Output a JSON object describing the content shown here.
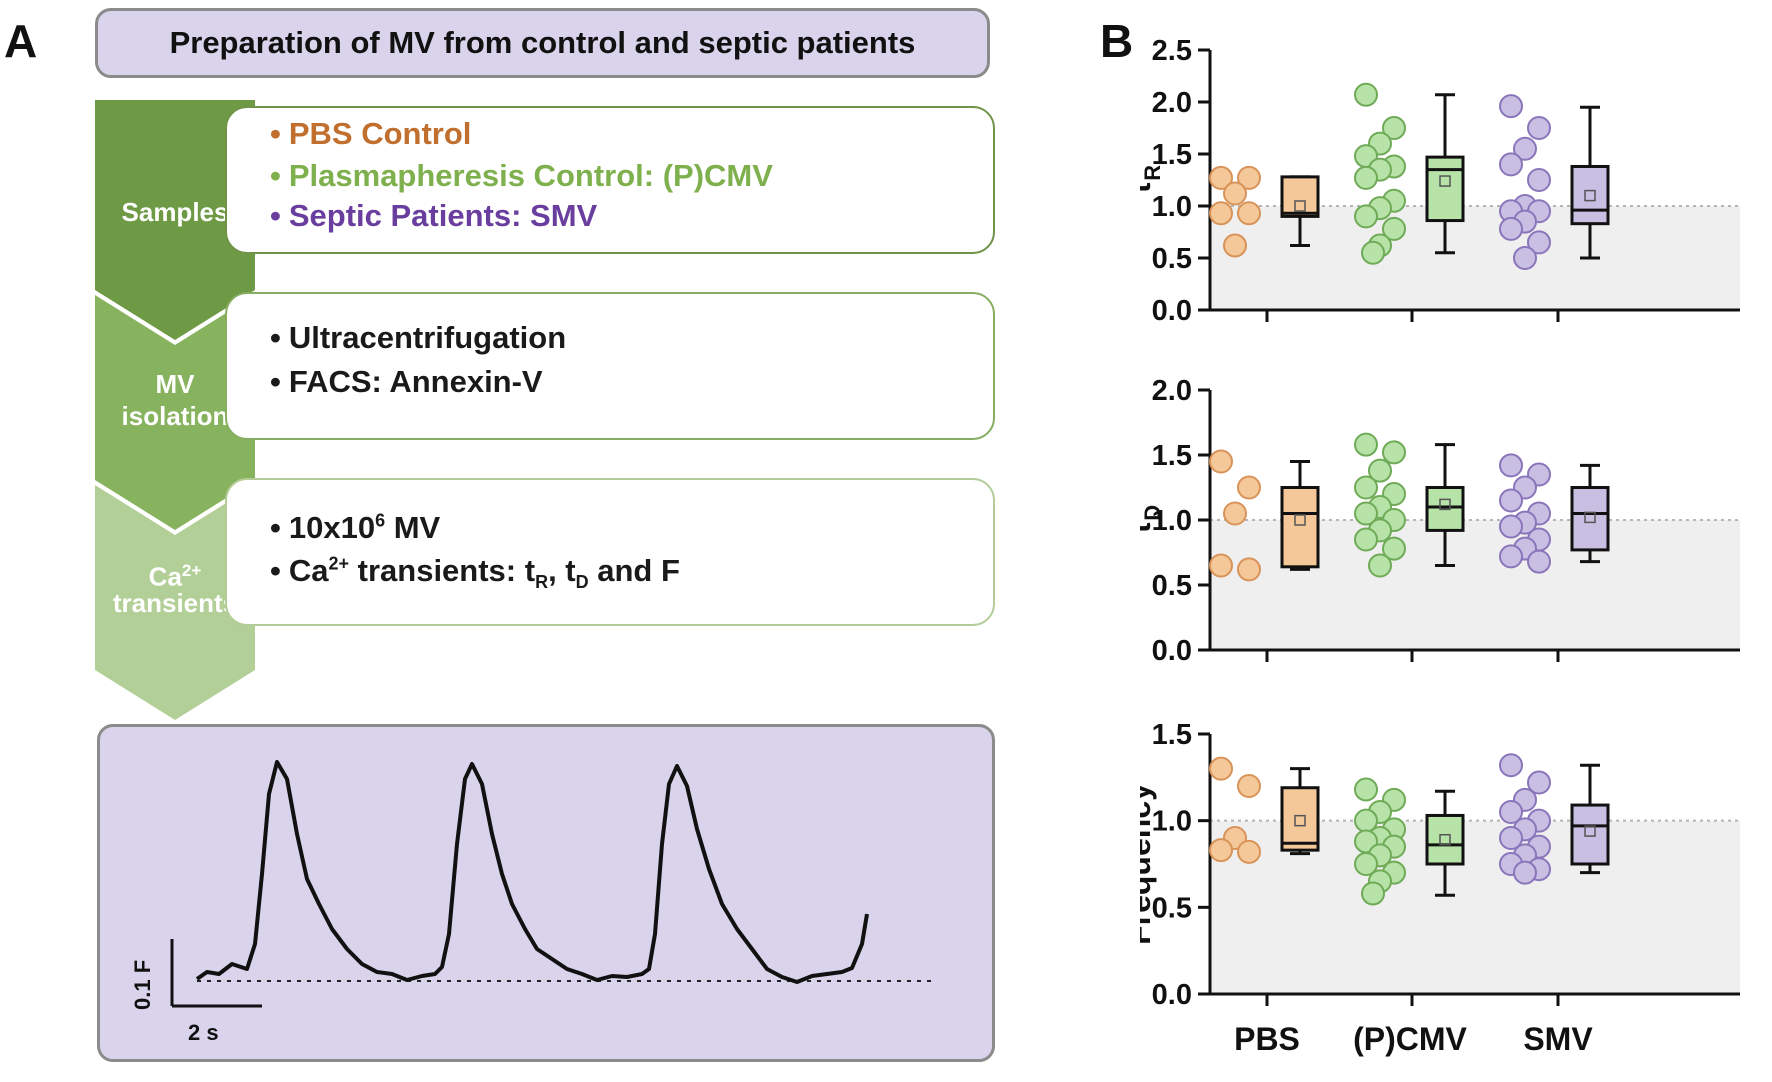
{
  "panelA": {
    "letter": "A",
    "title": "Preparation of MV from control and septic patients",
    "steps": [
      {
        "chevron": [
          "Samples"
        ],
        "lines": [
          {
            "bullet": "•",
            "text": "PBS Control",
            "color": "#c06f2e"
          },
          {
            "bullet": "•",
            "text": "Plasmapheresis Control: (P)CMV",
            "color": "#7fb04e"
          },
          {
            "bullet": "•",
            "text": "Septic Patients: SMV",
            "color": "#6a3e9e"
          }
        ]
      },
      {
        "chevron": [
          "MV",
          "isolation"
        ],
        "lines": [
          {
            "bullet": "•",
            "text": "Ultracentrifugation",
            "color": "#1a1a1a"
          },
          {
            "bullet": "•",
            "text": "FACS: Annexin-V",
            "color": "#1a1a1a"
          }
        ]
      },
      {
        "chevron_base": "Ca",
        "chevron_sup": "2+",
        "chevron_line2": "transients",
        "line1": {
          "bullet": "•",
          "base": "10x10",
          "sup": "6",
          "tail": " MV"
        },
        "line2": {
          "bullet": "•",
          "base": "Ca",
          "sup": "2+",
          "mid": " transients: t",
          "sub1": "R",
          "comma": ", t",
          "sub2": "D",
          "tail": "  and F"
        }
      }
    ],
    "trace": {
      "scale_y": "0.1 F",
      "scale_x": "2 s"
    }
  },
  "panelB": {
    "letter": "B",
    "x_categories": [
      "PBS",
      "(P)CMV",
      "SMV"
    ]
  },
  "colors": {
    "pbs_fill": "#f5c89a",
    "pbs_stroke": "#d89358",
    "pcmv_fill": "#b7e3a8",
    "pcmv_stroke": "#6faa57",
    "smv_fill": "#c9bfe3",
    "smv_stroke": "#8a75bb",
    "chev1": "#6e9a45",
    "chev2": "#87b25e",
    "chev3": "#b3cf98"
  },
  "chart_data": [
    {
      "type": "scatter+box",
      "ylabel": "τ",
      "ylabel_sub": "R",
      "ylim": [
        0,
        2.5
      ],
      "ticks": [
        "0.0",
        "0.5",
        "1.0",
        "1.5",
        "2.0",
        "2.5"
      ],
      "tick_values": [
        0,
        0.5,
        1.0,
        1.5,
        2.0,
        2.5
      ],
      "reference_line": 1.0,
      "groups": [
        {
          "name": "PBS",
          "points": [
            1.27,
            1.27,
            1.12,
            0.93,
            0.93,
            0.62
          ],
          "box": {
            "min": 0.62,
            "q1": 0.9,
            "median": 0.93,
            "q3": 1.28,
            "max": 1.28,
            "mean": 1.0
          }
        },
        {
          "name": "(P)CMV",
          "points": [
            2.07,
            1.75,
            1.6,
            1.48,
            1.38,
            1.35,
            1.27,
            1.05,
            0.98,
            0.9,
            0.78,
            0.62,
            0.55
          ],
          "box": {
            "min": 0.55,
            "q1": 0.86,
            "median": 1.35,
            "q3": 1.47,
            "max": 2.07,
            "mean": 1.24
          }
        },
        {
          "name": "SMV",
          "points": [
            1.96,
            1.75,
            1.55,
            1.4,
            1.25,
            1.0,
            0.95,
            0.95,
            0.85,
            0.78,
            0.65,
            0.5
          ],
          "box": {
            "min": 0.5,
            "q1": 0.83,
            "median": 0.96,
            "q3": 1.38,
            "max": 1.95,
            "mean": 1.1
          }
        }
      ]
    },
    {
      "type": "scatter+box",
      "ylabel": "τ",
      "ylabel_sub": "D",
      "ylim": [
        0,
        2.0
      ],
      "ticks": [
        "0.0",
        "0.5",
        "1.0",
        "1.5",
        "2.0"
      ],
      "tick_values": [
        0,
        0.5,
        1.0,
        1.5,
        2.0
      ],
      "reference_line": 1.0,
      "groups": [
        {
          "name": "PBS",
          "points": [
            1.45,
            1.25,
            1.05,
            0.65,
            0.62
          ],
          "box": {
            "min": 0.62,
            "q1": 0.64,
            "median": 1.05,
            "q3": 1.25,
            "max": 1.45,
            "mean": 1.0
          }
        },
        {
          "name": "(P)CMV",
          "points": [
            1.58,
            1.52,
            1.38,
            1.25,
            1.2,
            1.1,
            1.05,
            1.0,
            0.92,
            0.85,
            0.78,
            0.65
          ],
          "box": {
            "min": 0.65,
            "q1": 0.92,
            "median": 1.1,
            "q3": 1.25,
            "max": 1.58,
            "mean": 1.12
          }
        },
        {
          "name": "SMV",
          "points": [
            1.42,
            1.35,
            1.25,
            1.15,
            1.05,
            0.98,
            0.95,
            0.85,
            0.78,
            0.72,
            0.68
          ],
          "box": {
            "min": 0.68,
            "q1": 0.77,
            "median": 1.05,
            "q3": 1.25,
            "max": 1.42,
            "mean": 1.02
          }
        }
      ]
    },
    {
      "type": "scatter+box",
      "ylabel": "Frequency",
      "ylabel_sub": "",
      "ylim": [
        0,
        1.5
      ],
      "ticks": [
        "0.0",
        "0.5",
        "1.0",
        "1.5"
      ],
      "tick_values": [
        0,
        0.5,
        1.0,
        1.5
      ],
      "reference_line": 1.0,
      "groups": [
        {
          "name": "PBS",
          "points": [
            1.3,
            1.2,
            0.9,
            0.83,
            0.82
          ],
          "box": {
            "min": 0.81,
            "q1": 0.83,
            "median": 0.87,
            "q3": 1.19,
            "max": 1.3,
            "mean": 1.0
          }
        },
        {
          "name": "(P)CMV",
          "points": [
            1.18,
            1.12,
            1.05,
            1.0,
            0.95,
            0.9,
            0.88,
            0.85,
            0.8,
            0.75,
            0.7,
            0.65,
            0.58
          ],
          "box": {
            "min": 0.57,
            "q1": 0.75,
            "median": 0.86,
            "q3": 1.03,
            "max": 1.17,
            "mean": 0.89
          }
        },
        {
          "name": "SMV",
          "points": [
            1.32,
            1.22,
            1.12,
            1.05,
            1.0,
            0.95,
            0.9,
            0.85,
            0.8,
            0.75,
            0.72,
            0.7
          ],
          "box": {
            "min": 0.7,
            "q1": 0.75,
            "median": 0.97,
            "q3": 1.09,
            "max": 1.32,
            "mean": 0.94
          }
        }
      ]
    }
  ]
}
